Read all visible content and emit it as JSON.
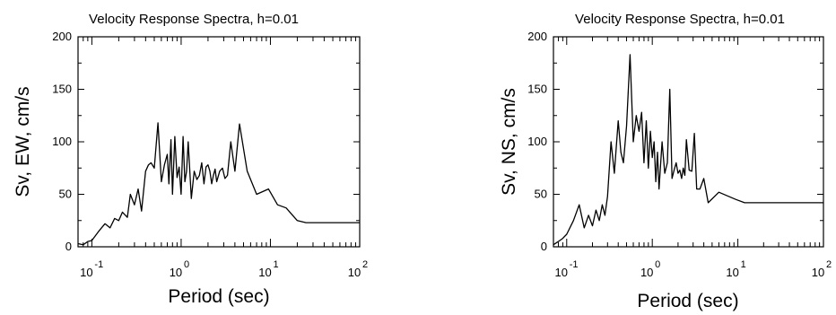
{
  "chart_data": [
    {
      "type": "line",
      "title": "Velocity Response Spectra, h=0.01",
      "xlabel": "Period (sec)",
      "ylabel": "Sv, EW, cm/s",
      "xscale": "log",
      "xlim": [
        0.07,
        100
      ],
      "ylim": [
        0,
        200
      ],
      "yticks": [
        0,
        50,
        100,
        150,
        200
      ],
      "xticks": [
        {
          "base": "10",
          "exp": "-1",
          "value": 0.1
        },
        {
          "base": "10",
          "exp": "0",
          "value": 1
        },
        {
          "base": "10",
          "exp": "1",
          "value": 10
        },
        {
          "base": "10",
          "exp": "2",
          "value": 100
        }
      ],
      "grid": false,
      "x": [
        0.07,
        0.08,
        0.09,
        0.1,
        0.12,
        0.14,
        0.16,
        0.18,
        0.2,
        0.22,
        0.25,
        0.27,
        0.3,
        0.33,
        0.36,
        0.4,
        0.43,
        0.46,
        0.5,
        0.55,
        0.6,
        0.65,
        0.7,
        0.73,
        0.77,
        0.8,
        0.85,
        0.9,
        0.95,
        1.0,
        1.05,
        1.1,
        1.15,
        1.2,
        1.3,
        1.4,
        1.5,
        1.6,
        1.7,
        1.8,
        1.9,
        2.0,
        2.1,
        2.2,
        2.3,
        2.4,
        2.5,
        2.7,
        2.9,
        3.1,
        3.3,
        3.6,
        4.0,
        4.5,
        5.5,
        7.0,
        9.5,
        12,
        15,
        20,
        25,
        30,
        50,
        100
      ],
      "y": [
        3,
        2,
        5,
        6,
        15,
        22,
        18,
        27,
        25,
        33,
        28,
        50,
        40,
        55,
        34,
        72,
        78,
        80,
        75,
        118,
        62,
        78,
        88,
        60,
        102,
        50,
        105,
        66,
        76,
        50,
        105,
        62,
        72,
        100,
        46,
        72,
        64,
        68,
        80,
        60,
        76,
        78,
        72,
        60,
        68,
        74,
        62,
        72,
        75,
        65,
        68,
        100,
        72,
        117,
        72,
        50,
        55,
        40,
        37,
        25,
        23,
        23,
        23,
        23
      ]
    },
    {
      "type": "line",
      "title": "Velocity Response Spectra, h=0.01",
      "xlabel": "Period (sec)",
      "ylabel": "Sv, NS, cm/s",
      "xscale": "log",
      "xlim": [
        0.07,
        100
      ],
      "ylim": [
        0,
        200
      ],
      "yticks": [
        0,
        50,
        100,
        150,
        200
      ],
      "xticks": [
        {
          "base": "10",
          "exp": "-1",
          "value": 0.1
        },
        {
          "base": "10",
          "exp": "0",
          "value": 1
        },
        {
          "base": "10",
          "exp": "1",
          "value": 10
        },
        {
          "base": "10",
          "exp": "2",
          "value": 100
        }
      ],
      "grid": false,
      "x": [
        0.07,
        0.08,
        0.09,
        0.1,
        0.12,
        0.14,
        0.16,
        0.18,
        0.2,
        0.22,
        0.24,
        0.26,
        0.28,
        0.3,
        0.33,
        0.36,
        0.4,
        0.43,
        0.46,
        0.5,
        0.55,
        0.6,
        0.65,
        0.7,
        0.75,
        0.8,
        0.85,
        0.9,
        0.95,
        1.0,
        1.05,
        1.1,
        1.15,
        1.2,
        1.3,
        1.4,
        1.5,
        1.6,
        1.7,
        1.8,
        1.9,
        2.0,
        2.1,
        2.2,
        2.3,
        2.4,
        2.5,
        2.7,
        2.9,
        3.1,
        3.3,
        3.6,
        4.0,
        4.5,
        6.0,
        9.5,
        12,
        15,
        20,
        25,
        30,
        50,
        100
      ],
      "y": [
        2,
        5,
        8,
        12,
        25,
        40,
        18,
        30,
        20,
        35,
        25,
        40,
        30,
        48,
        100,
        70,
        120,
        90,
        80,
        115,
        183,
        100,
        125,
        110,
        128,
        80,
        120,
        75,
        110,
        85,
        100,
        62,
        90,
        55,
        100,
        70,
        80,
        150,
        65,
        73,
        80,
        70,
        73,
        65,
        75,
        68,
        102,
        73,
        72,
        108,
        55,
        55,
        65,
        42,
        52,
        45,
        42,
        42,
        42,
        42,
        42,
        42,
        42
      ]
    }
  ]
}
